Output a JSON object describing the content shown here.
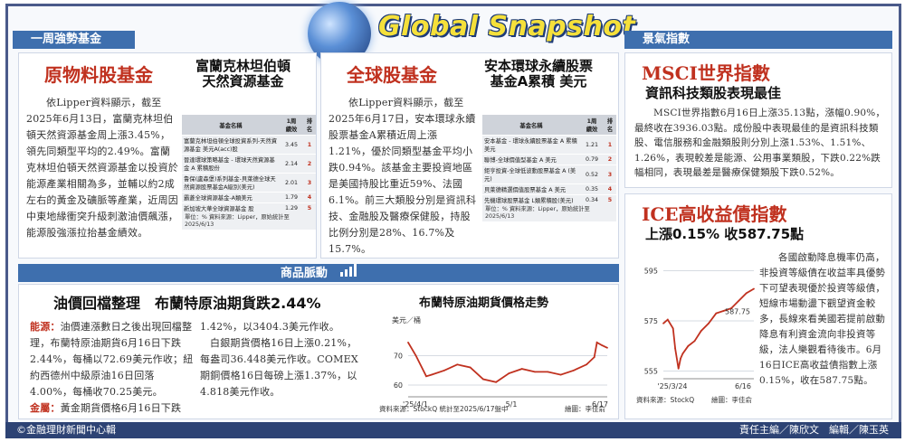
{
  "header": {
    "title": "Global Snapshot",
    "section1": "一周強勢基金",
    "section2": "景氣指數",
    "section3": "商品脈動"
  },
  "fund1": {
    "category": "原物料股基金",
    "name_line1": "富蘭克林坦伯頓",
    "name_line2": "天然資源基金",
    "body": "依Lipper資料顯示，截至2025年6月13日，富蘭克林坦伯頓天然資源基金周上漲3.45%，領先同類型平均的2.49%。富蘭克林坦伯頓天然資源基金以投資於能源產業相關為多，並輔以約2成左右的黃金及礦脈等產業，近周因中東地緣衝突升級刺激油價飆漲，能源股強漲拉抬基金績效。",
    "table_headers": [
      "基金名稱",
      "1周\n績效",
      "排名"
    ],
    "rows": [
      {
        "name": "富蘭克林坦伯頓全球投資系列-天然資源基金 美元A(acc)股",
        "ret": "3.45",
        "rank": "1"
      },
      {
        "name": "晉達環球策略基金 - 環球天然資源基金 A 累積股份",
        "ret": "2.14",
        "rank": "2"
      },
      {
        "name": "鲁保(盧森堡)系列基金-貝萊德全球天然資源股票基金A級別(美元)",
        "ret": "2.01",
        "rank": "3"
      },
      {
        "name": "霸菱全球資源基金-A類美元",
        "ret": "1.79",
        "rank": "4"
      },
      {
        "name": "新加坡大華全球資源基金 股",
        "ret": "1.29",
        "rank": "5"
      }
    ],
    "note": "單位：% 資料來源：Lipper，原始統計至2025/6/13"
  },
  "fund2": {
    "category": "全球股基金",
    "name_line1": "安本環球永續股票",
    "name_line2": "基金A累積 美元",
    "body": "依Lipper資料顯示，截至2025年6月17日，安本環球永續股票基金A累積近周上漲1.21%，優於同類型基金平均小跌0.94%。該基金主要投資地區是美國持股比重近59%、法國6.1%。前三大類股分別是資訊科技、金融股及醫療保健股，持股比例分別是28%、16.7%及15.7%。",
    "table_headers": [
      "基金名稱",
      "1周\n績效",
      "排名"
    ],
    "rows": [
      {
        "name": "安本基金 - 環球永續股票基金 A 累積 美元",
        "ret": "1.21",
        "rank": "1"
      },
      {
        "name": "聯博-全球價值型基金 A 美元",
        "ret": "0.79",
        "rank": "2"
      },
      {
        "name": "鉅亨投資-全球低波動股票基金 A (美元)",
        "ret": "0.52",
        "rank": "3"
      },
      {
        "name": "貝萊德精選價值股票基金 A 美元",
        "ret": "0.35",
        "rank": "4"
      },
      {
        "name": "先機環球股票基金 L類累積股(美元)",
        "ret": "0.34",
        "rank": "5"
      }
    ],
    "note": "單位：% 資料來源：Lipper，原始統計至2025/6/13"
  },
  "msci": {
    "title": "MSCI世界指數",
    "subtitle": "資訊科技類股表現最佳",
    "body": "MSCI世界指數6月16日上漲35.13點，漲幅0.90%，最終收在3936.03點。成份股中表現最佳的是資訊科技類股、電信服務和金融類股則分別上漲1.53%、1.51%、1.26%，表現較差是能源、公用事業類股，下跌0.22%跌幅相同，表現最差是醫療保健類股下跌0.52%。"
  },
  "ice": {
    "title": "ICE高收益債指數",
    "subtitle": "上漲0.15% 收587.75點",
    "body": "各國啟動降息機率仍高，非投資等級債在收益率具優勢下可望表現優於投資等級債，短線市場動盪下觀望資金較多，長線來看美國若提前啟動降息有利資金流向非投資等級，法人樂觀看待後市。6月16日ICE高收益債指數上漲0.15%，收在587.75點。",
    "source": "資料來源：StockQ",
    "drawer": "繪圖：李佳俞"
  },
  "oil": {
    "title": "油價回檔整理　布蘭特原油期貨跌2.44%",
    "energy_label": "能源：",
    "energy_text": "油價連漲數日之後出現回檔整理，布蘭特原油期貨6月16日下跌2.44%，每桶以72.69美元作收；紐約西德州中級原油16日回落4.00%，每桶收70.25美元。",
    "gold_label": "金屬：",
    "gold_text": "黃金期貨價格6月16日下跌",
    "col2_text": "1.42%，以3404.3美元作收。",
    "col2_text2": "白銀期貨價格16日上漲0.21%，每盎司36.448美元作收。COMEX期銅價格16日每磅上漲1.37%，以4.818美元作收。"
  },
  "chart_data": [
    {
      "type": "line",
      "title": "布蘭特原油期貨價格走勢",
      "ylabel": "美元／桶",
      "x_ticks": [
        "'25/4/1",
        "5/1",
        "6/17"
      ],
      "y_ticks": [
        60,
        70
      ],
      "ylim": [
        56,
        80
      ],
      "x": [
        "2025-04-01",
        "2025-04-04",
        "2025-04-08",
        "2025-04-10",
        "2025-04-15",
        "2025-04-20",
        "2025-04-25",
        "2025-04-30",
        "2025-05-05",
        "2025-05-10",
        "2025-05-15",
        "2025-05-20",
        "2025-05-25",
        "2025-05-30",
        "2025-06-04",
        "2025-06-09",
        "2025-06-12",
        "2025-06-13",
        "2025-06-15",
        "2025-06-17"
      ],
      "values": [
        74.5,
        70,
        63,
        63.5,
        65,
        67,
        66,
        62,
        61,
        64,
        65.5,
        64.5,
        64.5,
        63.5,
        65,
        67,
        69.5,
        74.5,
        73.5,
        72.69
      ],
      "source": "資料來源：StockQ 統計至2025/6/17盤中",
      "drawer": "繪圖：李佳俞"
    },
    {
      "type": "line",
      "title": "ICE高收益債指數",
      "x_ticks": [
        "'25/3/24",
        "6/16"
      ],
      "y_ticks": [
        555,
        575,
        595
      ],
      "ylim": [
        552,
        598
      ],
      "x": [
        "2025-03-24",
        "2025-03-28",
        "2025-04-02",
        "2025-04-04",
        "2025-04-07",
        "2025-04-09",
        "2025-04-11",
        "2025-04-16",
        "2025-04-22",
        "2025-04-28",
        "2025-05-05",
        "2025-05-12",
        "2025-05-19",
        "2025-05-26",
        "2025-06-02",
        "2025-06-09",
        "2025-06-13",
        "2025-06-16"
      ],
      "values": [
        574,
        575.5,
        572,
        564,
        556,
        560,
        562,
        565,
        567,
        571,
        574,
        578,
        579,
        580,
        583,
        586,
        587,
        587.75
      ],
      "annotation": "587.75"
    }
  ],
  "footer": {
    "copyright": "©金融理財新聞中心輯",
    "credits": "責任主編／陳欣文　編輯／陳玉英"
  }
}
